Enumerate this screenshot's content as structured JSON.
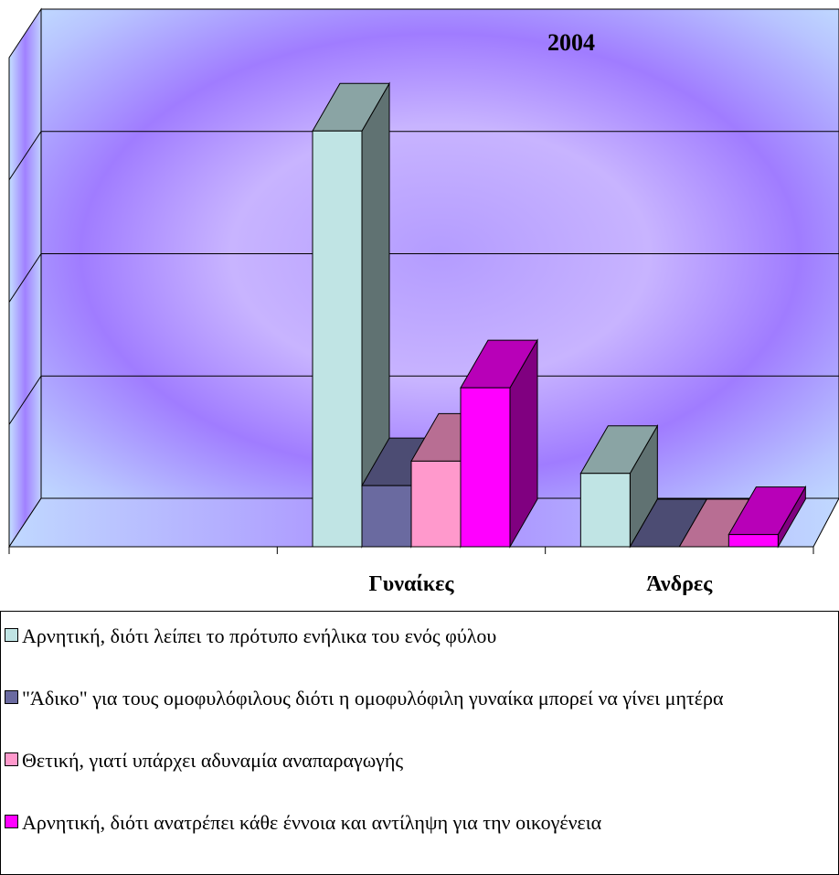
{
  "chart_data": {
    "type": "bar3d",
    "title": "2004",
    "categories": [
      null,
      "Γυναίκες",
      "Άνδρες"
    ],
    "series": [
      {
        "name": "Αρνητική, διότι λείπει το πρότυπο ενήλικα του ενός φύλου",
        "color": "#c0e4e4",
        "values": [
          null,
          34,
          6
        ]
      },
      {
        "name": "\"Άδικο\" για τους ομοφυλόφιλους διότι η ομοφυλόφιλη γυναίκα μπορεί να γίνει μητέρα",
        "color": "#6a6aa0",
        "values": [
          null,
          5,
          0
        ]
      },
      {
        "name": "Θετική, γιατί υπάρχει αδυναμία αναπαραγωγής",
        "color": "#ff99cc",
        "values": [
          null,
          7,
          0
        ]
      },
      {
        "name": "Αρνητική, διότι ανατρέπει κάθε έννοια και αντίληψη για την οικογένεια",
        "color": "#ff00ff",
        "values": [
          null,
          13,
          1
        ]
      }
    ],
    "ylim": [
      0,
      40
    ],
    "yticks": [
      0,
      10,
      20,
      30,
      40
    ],
    "grid": true
  }
}
